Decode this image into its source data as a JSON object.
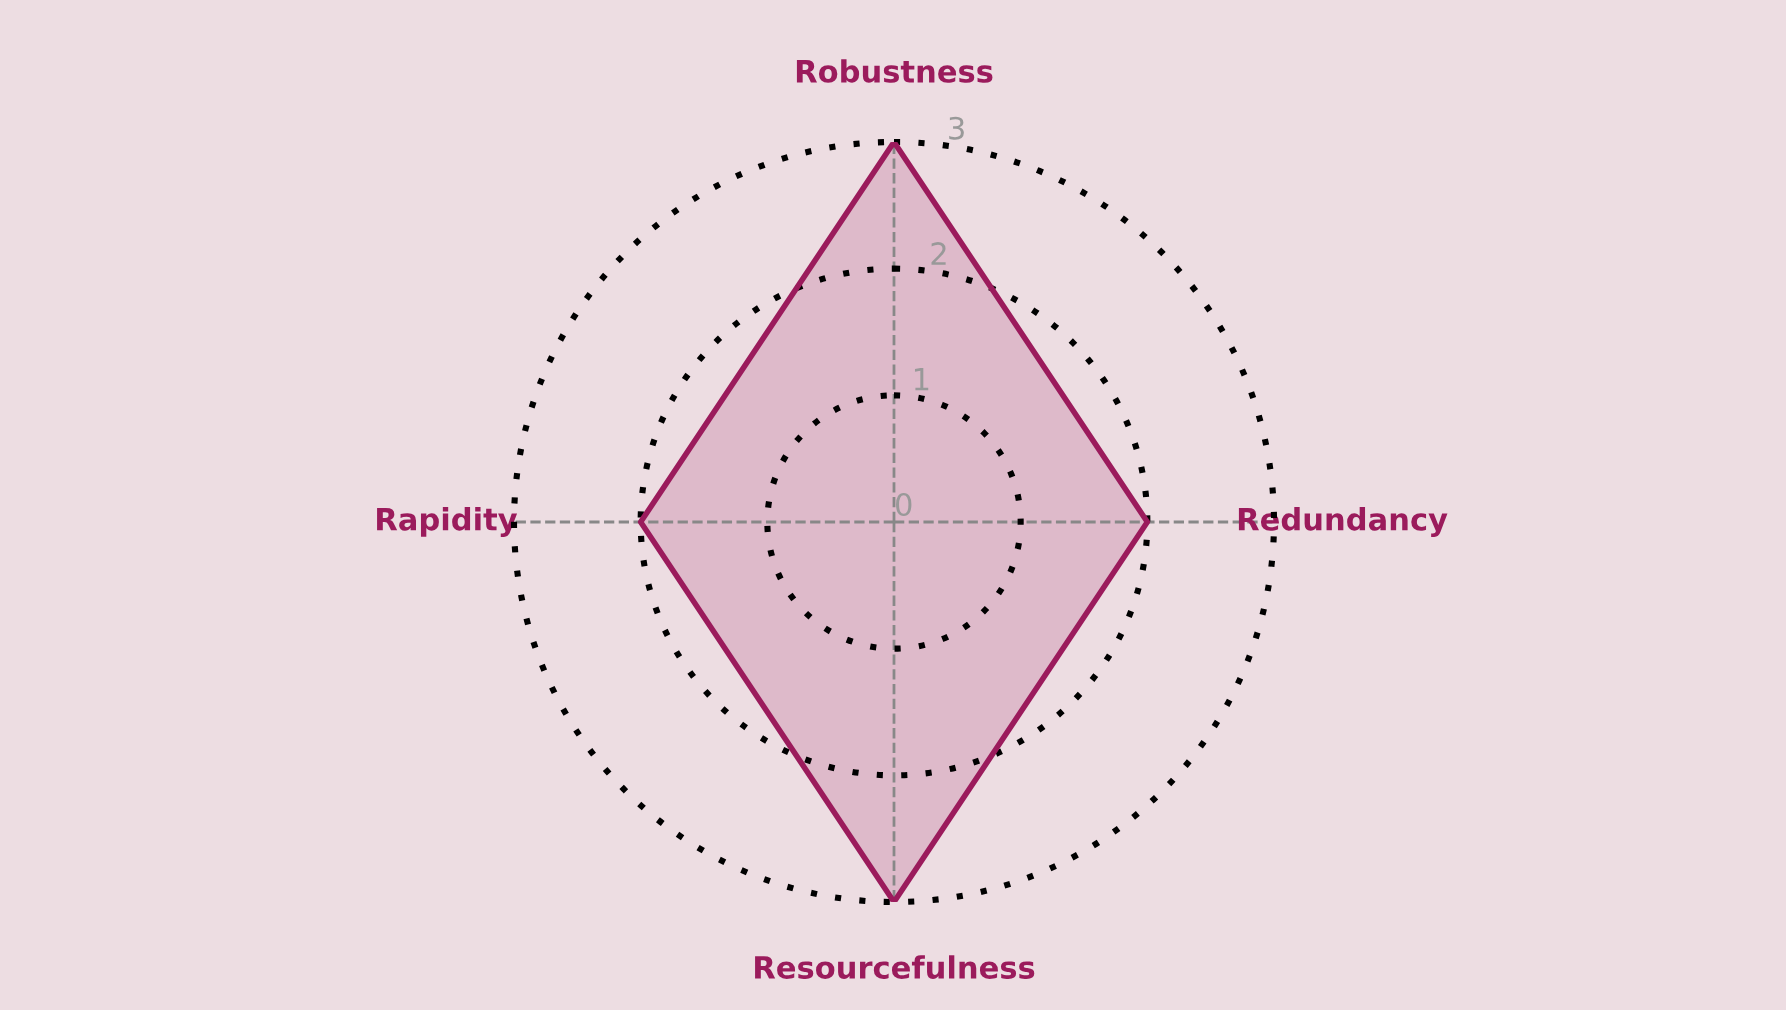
{
  "chart_data": {
    "type": "radar",
    "categories": [
      "Robustness",
      "Redundancy",
      "Resourcefulness",
      "Rapidity"
    ],
    "series": [
      {
        "color": "#9b1b5c",
        "values": [
          3,
          2,
          3,
          2
        ]
      }
    ],
    "ylim": [
      0,
      3
    ],
    "yticks": [
      0,
      1,
      2,
      3
    ],
    "grid": true
  }
}
